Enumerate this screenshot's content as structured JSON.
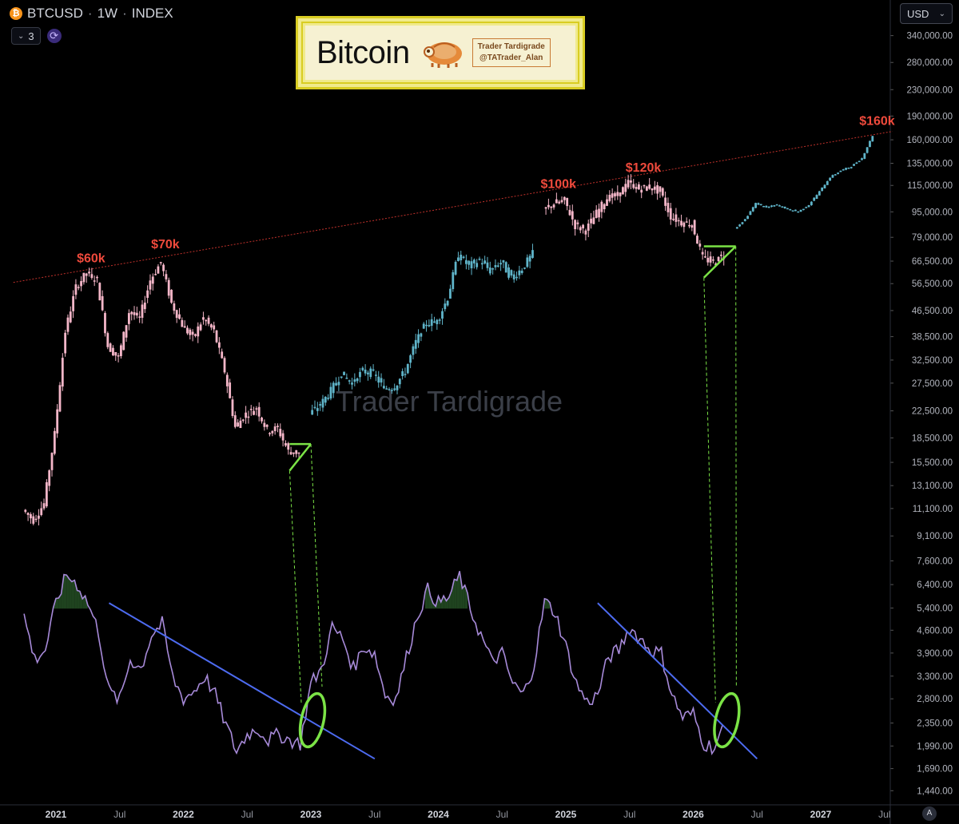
{
  "header": {
    "symbol": "BTCUSD",
    "separator1": "·",
    "interval": "1W",
    "separator2": "·",
    "exchange": "INDEX",
    "btc_icon": "₿",
    "indicator_count": "3",
    "refresh_icon": "refresh-icon"
  },
  "currency_selector": {
    "label": "USD"
  },
  "logo": {
    "title": "Bitcoin",
    "card_line1": "Trader Tardigrade",
    "card_line2": "@TATrader_Alan"
  },
  "watermark": "Trader Tardigrade",
  "auto_scale_button": "A",
  "colors": {
    "bear_candle": "#f4b6c8",
    "bull_candle": "#5fb4c9",
    "resistance_line": "#c0312b",
    "annotation_red": "#ef4a3c",
    "pattern_green": "#7be346",
    "oscillator": "#a78ad9",
    "oscillator_fill": "#224a22",
    "trendline_blue": "#4d6bf0"
  },
  "chart_data": {
    "type": "candlestick",
    "title": "BTCUSD · 1W · INDEX",
    "y_axis": {
      "scale": "log",
      "ylim": [
        1300,
        370000
      ],
      "tick_labels": [
        "340,000.00",
        "280,000.00",
        "230,000.00",
        "190,000.00",
        "160,000.00",
        "135,000.00",
        "115,000.00",
        "95,000.00",
        "79,000.00",
        "66,500.00",
        "56,500.00",
        "46,500.00",
        "38,500.00",
        "32,500.00",
        "27,500.00",
        "22,500.00",
        "18,500.00",
        "15,500.00",
        "13,100.00",
        "11,100.00",
        "9,100.00",
        "7,600.00",
        "6,400.00",
        "5,400.00",
        "4,600.00",
        "3,900.00",
        "3,300.00",
        "2,800.00",
        "2,350.00",
        "1,990.00",
        "1,690.00",
        "1,440.00"
      ]
    },
    "x_axis": {
      "tick_labels": [
        "2021",
        "Jul",
        "2022",
        "Jul",
        "2023",
        "Jul",
        "2024",
        "Jul",
        "2025",
        "Jul",
        "2026",
        "Jul",
        "2027",
        "Jul"
      ],
      "tick_dates": [
        "2021-01",
        "2021-07",
        "2022-01",
        "2022-07",
        "2023-01",
        "2023-07",
        "2024-01",
        "2024-07",
        "2025-01",
        "2025-07",
        "2026-01",
        "2026-07",
        "2027-01",
        "2027-07"
      ]
    },
    "price_path": {
      "note_style": "weekly candles",
      "series": [
        {
          "name": "history",
          "points": [
            [
              "2020-10",
              11000
            ],
            [
              "2020-11",
              10200
            ],
            [
              "2020-12",
              11500
            ],
            [
              "2021-01",
              19000
            ],
            [
              "2021-02",
              40000
            ],
            [
              "2021-03",
              55000
            ],
            [
              "2021-04",
              61000
            ],
            [
              "2021-05",
              58000
            ],
            [
              "2021-06",
              36000
            ],
            [
              "2021-07",
              33000
            ],
            [
              "2021-08",
              46000
            ],
            [
              "2021-09",
              44000
            ],
            [
              "2021-10",
              58000
            ],
            [
              "2021-11",
              66000
            ],
            [
              "2021-12",
              49000
            ],
            [
              "2022-01",
              42000
            ],
            [
              "2022-02",
              38000
            ],
            [
              "2022-03",
              44000
            ],
            [
              "2022-04",
              40000
            ],
            [
              "2022-05",
              30000
            ],
            [
              "2022-06",
              20000
            ],
            [
              "2022-07",
              22000
            ],
            [
              "2022-08",
              23000
            ],
            [
              "2022-09",
              19500
            ],
            [
              "2022-10",
              19800
            ],
            [
              "2022-11",
              16800
            ],
            [
              "2022-12",
              16600
            ]
          ]
        },
        {
          "name": "rally",
          "points": [
            [
              "2023-01",
              22000
            ],
            [
              "2023-02",
              23500
            ],
            [
              "2023-03",
              26000
            ],
            [
              "2023-04",
              29500
            ],
            [
              "2023-05",
              27500
            ],
            [
              "2023-06",
              30000
            ],
            [
              "2023-07",
              29500
            ],
            [
              "2023-08",
              26500
            ],
            [
              "2023-09",
              26800
            ],
            [
              "2023-10",
              30000
            ],
            [
              "2023-11",
              37000
            ],
            [
              "2023-12",
              42500
            ],
            [
              "2024-01",
              43000
            ],
            [
              "2024-02",
              51000
            ],
            [
              "2024-03",
              70000
            ],
            [
              "2024-04",
              64000
            ],
            [
              "2024-05",
              67000
            ],
            [
              "2024-06",
              62000
            ],
            [
              "2024-07",
              66000
            ],
            [
              "2024-08",
              59000
            ],
            [
              "2024-09",
              63000
            ],
            [
              "2024-10",
              70000
            ]
          ]
        },
        {
          "name": "history2",
          "points": [
            [
              "2024-11",
              96000
            ],
            [
              "2024-12",
              101000
            ],
            [
              "2025-01",
              103000
            ],
            [
              "2025-02",
              86000
            ],
            [
              "2025-03",
              83000
            ],
            [
              "2025-04",
              94000
            ],
            [
              "2025-05",
              105000
            ],
            [
              "2025-06",
              107000
            ],
            [
              "2025-07",
              117000
            ],
            [
              "2025-08",
              112000
            ],
            [
              "2025-09",
              114000
            ],
            [
              "2025-10",
              110000
            ],
            [
              "2025-11",
              92000
            ],
            [
              "2025-12",
              88000
            ],
            [
              "2026-01",
              87000
            ],
            [
              "2026-02",
              68000
            ],
            [
              "2026-03",
              66000
            ],
            [
              "2026-04",
              70000
            ]
          ]
        },
        {
          "name": "projection",
          "points": [
            [
              "2026-05",
              84000
            ],
            [
              "2026-06",
              90000
            ],
            [
              "2026-07",
              101000
            ],
            [
              "2026-08",
              98000
            ],
            [
              "2026-09",
              100000
            ],
            [
              "2026-10",
              97000
            ],
            [
              "2026-11",
              95000
            ],
            [
              "2026-12",
              100000
            ],
            [
              "2027-01",
              110000
            ],
            [
              "2027-02",
              122000
            ],
            [
              "2027-03",
              128000
            ],
            [
              "2027-04",
              132000
            ],
            [
              "2027-05",
              140000
            ],
            [
              "2027-06",
              165000
            ]
          ]
        }
      ]
    },
    "annotations": [
      {
        "text": "$60k",
        "date": "2021-04",
        "price": 66000
      },
      {
        "text": "$70k",
        "date": "2021-11",
        "price": 73000
      },
      {
        "text": "$100k",
        "date": "2024-12",
        "price": 113000
      },
      {
        "text": "$120k",
        "date": "2025-08",
        "price": 127000
      },
      {
        "text": "$160k",
        "date": "2027-06",
        "price": 178000
      }
    ],
    "resistance_line": {
      "from": [
        "2020-12",
        57000
      ],
      "to": [
        "2027-07",
        170000
      ]
    },
    "patterns": [
      {
        "name": "ascending triangle 1",
        "from_date": "2022-11",
        "to_date": "2023-01",
        "top": 17700,
        "bottom": 14600
      },
      {
        "name": "ascending triangle 2",
        "from_date": "2026-02",
        "to_date": "2026-05",
        "top": 74000,
        "bottom": 59000
      }
    ],
    "oscillator": {
      "name": "",
      "points": [
        [
          "2020-10",
          0.78
        ],
        [
          "2020-11",
          0.55
        ],
        [
          "2020-12",
          0.6
        ],
        [
          "2021-01",
          0.85
        ],
        [
          "2021-02",
          1.0
        ],
        [
          "2021-03",
          0.95
        ],
        [
          "2021-04",
          0.85
        ],
        [
          "2021-05",
          0.7
        ],
        [
          "2021-06",
          0.38
        ],
        [
          "2021-07",
          0.33
        ],
        [
          "2021-08",
          0.55
        ],
        [
          "2021-09",
          0.5
        ],
        [
          "2021-10",
          0.68
        ],
        [
          "2021-11",
          0.74
        ],
        [
          "2021-12",
          0.45
        ],
        [
          "2022-01",
          0.34
        ],
        [
          "2022-02",
          0.38
        ],
        [
          "2022-03",
          0.46
        ],
        [
          "2022-04",
          0.36
        ],
        [
          "2022-05",
          0.2
        ],
        [
          "2022-06",
          0.06
        ],
        [
          "2022-07",
          0.15
        ],
        [
          "2022-08",
          0.18
        ],
        [
          "2022-09",
          0.12
        ],
        [
          "2022-10",
          0.15
        ],
        [
          "2022-11",
          0.12
        ],
        [
          "2022-12",
          0.1
        ],
        [
          "2023-01",
          0.42
        ],
        [
          "2023-02",
          0.5
        ],
        [
          "2023-03",
          0.72
        ],
        [
          "2023-04",
          0.66
        ],
        [
          "2023-05",
          0.5
        ],
        [
          "2023-06",
          0.62
        ],
        [
          "2023-07",
          0.58
        ],
        [
          "2023-08",
          0.36
        ],
        [
          "2023-09",
          0.34
        ],
        [
          "2023-10",
          0.56
        ],
        [
          "2023-11",
          0.78
        ],
        [
          "2023-12",
          0.92
        ],
        [
          "2024-01",
          0.85
        ],
        [
          "2024-02",
          0.88
        ],
        [
          "2024-03",
          1.0
        ],
        [
          "2024-04",
          0.82
        ],
        [
          "2024-05",
          0.68
        ],
        [
          "2024-06",
          0.54
        ],
        [
          "2024-07",
          0.58
        ],
        [
          "2024-08",
          0.42
        ],
        [
          "2024-09",
          0.36
        ],
        [
          "2024-10",
          0.52
        ],
        [
          "2024-11",
          0.86
        ],
        [
          "2024-12",
          0.8
        ],
        [
          "2025-01",
          0.62
        ],
        [
          "2025-02",
          0.42
        ],
        [
          "2025-03",
          0.32
        ],
        [
          "2025-04",
          0.36
        ],
        [
          "2025-05",
          0.56
        ],
        [
          "2025-06",
          0.6
        ],
        [
          "2025-07",
          0.72
        ],
        [
          "2025-08",
          0.66
        ],
        [
          "2025-09",
          0.6
        ],
        [
          "2025-10",
          0.58
        ],
        [
          "2025-11",
          0.36
        ],
        [
          "2025-12",
          0.24
        ],
        [
          "2026-01",
          0.26
        ],
        [
          "2026-02",
          0.1
        ],
        [
          "2026-03",
          0.08
        ],
        [
          "2026-04",
          0.2
        ]
      ],
      "trendlines": [
        {
          "from": [
            "2021-06",
            0.85
          ],
          "to": [
            "2023-04",
            0.02
          ]
        },
        {
          "from": [
            "2025-04",
            0.85
          ],
          "to": [
            "2026-04",
            0.02
          ]
        }
      ],
      "circles": [
        "2023-01",
        "2026-04"
      ]
    }
  }
}
